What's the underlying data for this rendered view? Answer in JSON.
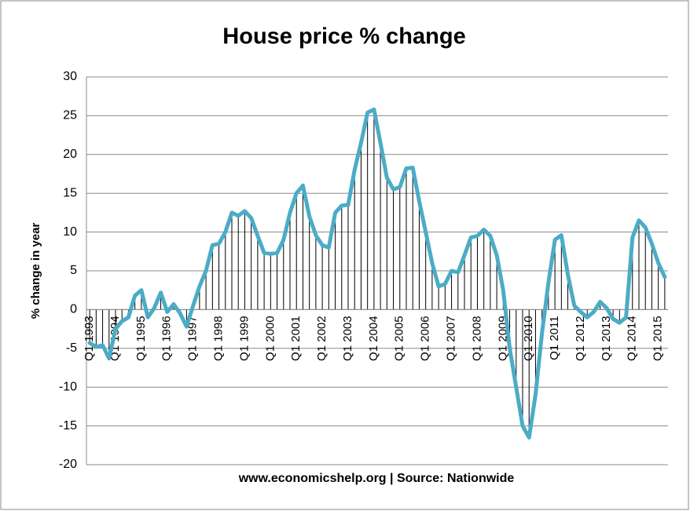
{
  "chart_data": {
    "type": "line",
    "title": "House price % change",
    "y_label": "% change in year",
    "note": "www.economicshelp.org | Source: Nationwide",
    "categories": [
      "Q1 1993",
      null,
      null,
      null,
      "Q1 1994",
      null,
      null,
      null,
      "Q1 1995",
      null,
      null,
      null,
      "Q1 1996",
      null,
      null,
      null,
      "Q1 1997",
      null,
      null,
      null,
      "Q1 1998",
      null,
      null,
      null,
      "Q1 1999",
      null,
      null,
      null,
      "Q1 2000",
      null,
      null,
      null,
      "Q1 2001",
      null,
      null,
      null,
      "Q1 2002",
      null,
      null,
      null,
      "Q1 2003",
      null,
      null,
      null,
      "Q1 2004",
      null,
      null,
      null,
      "Q1 2005",
      null,
      null,
      null,
      "Q1 2006",
      null,
      null,
      null,
      "Q1 2007",
      null,
      null,
      null,
      "Q1 2008",
      null,
      null,
      null,
      "Q1 2009",
      null,
      null,
      null,
      "Q1 2010",
      null,
      null,
      null,
      "Q1 2011",
      null,
      null,
      null,
      "Q1 2012",
      null,
      null,
      null,
      "Q1 2013",
      null,
      null,
      null,
      "Q1 2014",
      null,
      null,
      null,
      "Q1 2015",
      null
    ],
    "values": [
      -4.3,
      -4.8,
      -4.6,
      -6.3,
      -2.5,
      -1.5,
      -1.0,
      1.8,
      2.5,
      -1.0,
      0.2,
      2.2,
      -0.3,
      0.7,
      -0.5,
      -2.2,
      0.5,
      3.0,
      5.0,
      8.3,
      8.5,
      10.0,
      12.5,
      12.1,
      12.7,
      11.8,
      9.5,
      7.3,
      7.2,
      7.3,
      9.0,
      12.5,
      15.0,
      16.0,
      12.0,
      9.6,
      8.3,
      8.0,
      12.5,
      13.4,
      13.5,
      18.0,
      21.5,
      25.4,
      25.8,
      21.5,
      17.0,
      15.5,
      15.8,
      18.2,
      18.3,
      14.0,
      10.0,
      6.0,
      3.0,
      3.3,
      5.0,
      4.8,
      7.0,
      9.3,
      9.5,
      10.3,
      9.5,
      7.0,
      2.5,
      -5.0,
      -10.0,
      -15.0,
      -16.5,
      -11.0,
      -3.0,
      3.5,
      9.0,
      9.6,
      4.5,
      0.5,
      -0.3,
      -1.0,
      -0.3,
      1.0,
      0.2,
      -1.2,
      -1.7,
      -1.0,
      9.3,
      11.5,
      10.6,
      8.5,
      6.0,
      4.2
    ],
    "color": "#4bacc6",
    "drop_line_color": "#000000",
    "ylim": [
      -20,
      30
    ],
    "yticks": [
      -20,
      -15,
      -10,
      -5,
      0,
      5,
      10,
      15,
      20,
      25,
      30
    ],
    "grid": true
  }
}
